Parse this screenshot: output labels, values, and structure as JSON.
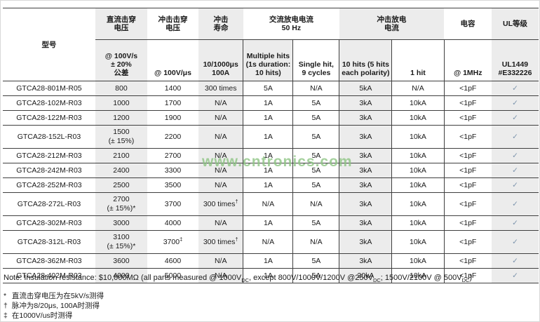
{
  "watermark": "www.cntronics.com",
  "colors": {
    "shade": "#ececec",
    "check": "#7e95ad",
    "watermark_green": "#8dc483",
    "border": "#3f3f3f"
  },
  "table": {
    "model_header": "型号",
    "groups": [
      {
        "label": "直流击穿\n电压",
        "span": 1
      },
      {
        "label": "冲击击穿\n电压",
        "span": 1
      },
      {
        "label": "冲击\n寿命",
        "span": 1
      },
      {
        "label": "交流放电电流\n50 Hz",
        "span": 2
      },
      {
        "label": "冲击放电\n电流",
        "span": 2
      },
      {
        "label": "电容",
        "span": 1
      },
      {
        "label": "UL等级",
        "span": 1
      }
    ],
    "subheaders": [
      "@ 100V/s\n± 20%\n公差",
      "@ 100V/μs",
      "10/1000μs\n100A",
      "Multiple hits\n(1s duration:\n10 hits)",
      "Single hit,\n9 cycles",
      "10 hits (5 hits\neach polarity)",
      "1 hit",
      "@ 1MHz",
      "UL1449\n#E332226"
    ],
    "column_ids": [
      "model",
      "dc-breakdown-voltage",
      "impulse-breakdown-voltage",
      "impulse-life",
      "ac-discharge-multiple-hits",
      "ac-discharge-single-hit",
      "impulse-discharge-10-hits",
      "impulse-discharge-1-hit",
      "capacitance",
      "ul-recognition"
    ],
    "check_symbol": "✓",
    "rows": [
      [
        "GTCA28-801M-R05",
        "800",
        "1400",
        "300 times",
        "5A",
        "N/A",
        "5kA",
        "N/A",
        "<1pF",
        "✓"
      ],
      [
        "GTCA28-102M-R03",
        "1000",
        "1700",
        "N/A",
        "1A",
        "5A",
        "3kA",
        "10kA",
        "<1pF",
        "✓"
      ],
      [
        "GTCA28-122M-R03",
        "1200",
        "1900",
        "N/A",
        "1A",
        "5A",
        "3kA",
        "10kA",
        "<1pF",
        "✓"
      ],
      [
        "GTCA28-152L-R03",
        "1500\n(± 15%)",
        "2200",
        "N/A",
        "1A",
        "5A",
        "3kA",
        "10kA",
        "<1pF",
        "✓"
      ],
      [
        "GTCA28-212M-R03",
        "2100",
        "2700",
        "N/A",
        "1A",
        "5A",
        "3kA",
        "10kA",
        "<1pF",
        "✓"
      ],
      [
        "GTCA28-242M-R03",
        "2400",
        "3300",
        "N/A",
        "1A",
        "5A",
        "3kA",
        "10kA",
        "<1pF",
        "✓"
      ],
      [
        "GTCA28-252M-R03",
        "2500",
        "3500",
        "N/A",
        "1A",
        "5A",
        "3kA",
        "10kA",
        "<1pF",
        "✓"
      ],
      [
        "GTCA28-272L-R03",
        "2700\n(± 15%)*",
        "3700",
        "300 times†",
        "N/A",
        "N/A",
        "3kA",
        "10kA",
        "<1pF",
        "✓"
      ],
      [
        "GTCA28-302M-R03",
        "3000",
        "4000",
        "N/A",
        "1A",
        "5A",
        "3kA",
        "10kA",
        "<1pF",
        "✓"
      ],
      [
        "GTCA28-312L-R03",
        "3100\n(± 15%)*",
        "3700‡",
        "300 times†",
        "N/A",
        "N/A",
        "3kA",
        "10kA",
        "<1pF",
        "✓"
      ],
      [
        "GTCA28-362M-R03",
        "3600",
        "4600",
        "N/A",
        "1A",
        "5A",
        "3kA",
        "10kA",
        "<1pF",
        "✓"
      ],
      [
        "GTCA28-402M-R03",
        "4000",
        "5000",
        "N/A",
        "1A",
        "5A",
        "20kA",
        "10kA",
        "<1pF",
        "✓"
      ]
    ]
  },
  "notes": {
    "main_segments": [
      {
        "t": "Note: Insulation resistance: $10,000MΩ (all parts measured @ 1000V"
      },
      {
        "t": "DC",
        "sub": true
      },
      {
        "t": ", except 800V/1000V/1200V @250V"
      },
      {
        "t": "DC",
        "sub": true
      },
      {
        "t": "; 1500V/2100V @ 500V"
      },
      {
        "t": "DC",
        "sub": true
      },
      {
        "t": ")"
      }
    ],
    "footnotes": [
      {
        "marker": "*",
        "text": "直流击穿电压为在5kV/s测得"
      },
      {
        "marker": "†",
        "text": "脉冲为8/20μs, 100A时测得"
      },
      {
        "marker": "‡",
        "text": "在1000V/us时测得"
      }
    ]
  }
}
